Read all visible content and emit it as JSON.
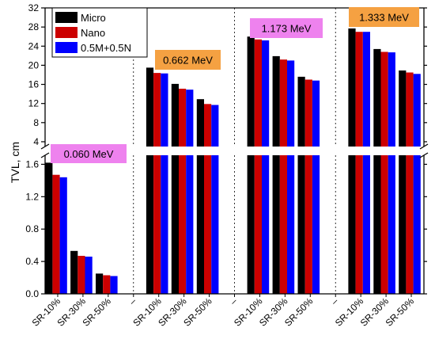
{
  "chart_data": {
    "type": "bar",
    "ylabel": "TVL, cm",
    "axis_break": true,
    "lower_axis": {
      "ylim": [
        0,
        1.8
      ],
      "ticks": [
        "0.0",
        "0.4",
        "0.8",
        "1.2",
        "1.6"
      ]
    },
    "upper_axis": {
      "ylim": [
        2.5,
        32
      ],
      "ticks": [
        "4",
        "8",
        "12",
        "16",
        "20",
        "24",
        "28",
        "32"
      ]
    },
    "legend": {
      "placement": "top-left",
      "entries": [
        {
          "name": "Micro",
          "color": "#000000"
        },
        {
          "name": "Nano",
          "color": "#cc0000"
        },
        {
          "name": "0.5M+0.5N",
          "color": "#0000ff"
        }
      ]
    },
    "categories": [
      "SR-10%",
      "SR-30%",
      "SR-50%",
      "–",
      "SR-10%",
      "SR-30%",
      "SR-50%",
      "–",
      "SR-10%",
      "SR-30%",
      "SR-50%",
      "–",
      "SR-10%",
      "SR-30%",
      "SR-50%"
    ],
    "groups": [
      {
        "label": "0.060 MeV",
        "label_color": "#ee82ee",
        "values": {
          "Micro": [
            1.62,
            0.53,
            0.25
          ],
          "Nano": [
            1.47,
            0.47,
            0.23
          ],
          "0.5M+0.5N": [
            1.44,
            0.46,
            0.22
          ]
        }
      },
      {
        "label": "0.662 MeV",
        "label_color": "#f5a142",
        "values": {
          "Micro": [
            19.5,
            16.1,
            12.9
          ],
          "Nano": [
            18.4,
            15.1,
            11.9
          ],
          "0.5M+0.5N": [
            18.3,
            14.9,
            11.7
          ]
        }
      },
      {
        "label": "1.173 MeV",
        "label_color": "#ee82ee",
        "values": {
          "Micro": [
            26.0,
            21.9,
            17.6
          ],
          "Nano": [
            25.4,
            21.2,
            17.0
          ],
          "0.5M+0.5N": [
            25.2,
            21.0,
            16.8
          ]
        }
      },
      {
        "label": "1.333 MeV",
        "label_color": "#f5a142",
        "values": {
          "Micro": [
            27.7,
            23.4,
            18.9
          ],
          "Nano": [
            27.0,
            22.8,
            18.5
          ],
          "0.5M+0.5N": [
            27.0,
            22.7,
            18.2
          ]
        }
      }
    ]
  }
}
